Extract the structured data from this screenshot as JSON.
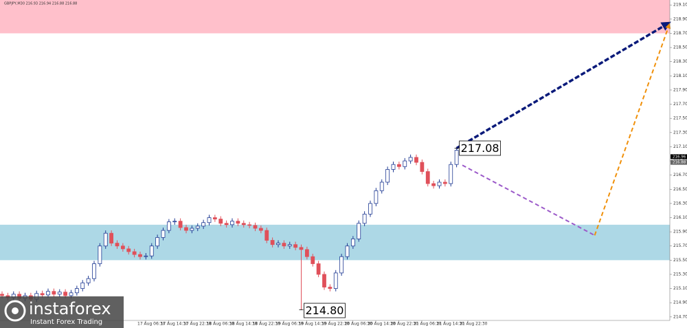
{
  "chart_data": {
    "type": "candlestick",
    "title": "GBPJPY,M30  216.93 216.94 216.88 216.88",
    "ylim": [
      214.65,
      219.17
    ],
    "yticks": [
      {
        "value": 214.7,
        "label": "214.70"
      },
      {
        "value": 214.9,
        "label": "214.90"
      },
      {
        "value": 215.1,
        "label": "215.10"
      },
      {
        "value": 215.3,
        "label": "215.30"
      },
      {
        "value": 215.5,
        "label": "215.50"
      },
      {
        "value": 215.7,
        "label": "215.70"
      },
      {
        "value": 215.9,
        "label": "215.90"
      },
      {
        "value": 216.1,
        "label": "216.10"
      },
      {
        "value": 216.3,
        "label": "216.30"
      },
      {
        "value": 216.5,
        "label": "216.50"
      },
      {
        "value": 216.7,
        "label": "216.70"
      },
      {
        "value": 216.9,
        "label": "216.90"
      },
      {
        "value": 217.1,
        "label": "217.10"
      },
      {
        "value": 217.3,
        "label": "217.30"
      },
      {
        "value": 217.5,
        "label": "217.50"
      },
      {
        "value": 217.7,
        "label": "217.70"
      },
      {
        "value": 217.9,
        "label": "217.90"
      },
      {
        "value": 218.1,
        "label": "218.10"
      },
      {
        "value": 218.3,
        "label": "218.30"
      },
      {
        "value": 218.5,
        "label": "218.50"
      },
      {
        "value": 218.7,
        "label": "218.70"
      },
      {
        "value": 218.9,
        "label": "218.90"
      },
      {
        "value": 219.1,
        "label": "219.10"
      }
    ],
    "xticks": [
      "17 Aug 06:30",
      "17 Aug 14:30",
      "17 Aug 22:30",
      "18 Aug 06:30",
      "18 Aug 14:30",
      "18 Aug 22:30",
      "19 Aug 06:30",
      "19 Aug 14:30",
      "19 Aug 22:30",
      "20 Aug 06:30",
      "20 Aug 14:30",
      "20 Aug 22:30",
      "21 Aug 06:30",
      "21 Aug 14:30",
      "21 Aug 22:30"
    ],
    "up_color": "#1f3a93",
    "down_color": "#e0505a",
    "open": [
      215.02,
      215.0,
      214.97,
      215.02,
      214.96,
      215.0,
      214.95,
      215.03,
      215.01,
      215.06,
      215.02,
      215.05,
      215.0,
      215.04,
      215.1,
      215.18,
      215.24,
      215.45,
      215.7,
      215.88,
      215.74,
      215.7,
      215.66,
      215.62,
      215.58,
      215.55,
      215.56,
      215.7,
      215.82,
      215.92,
      216.04,
      216.05,
      215.96,
      215.92,
      215.95,
      215.98,
      216.03,
      216.1,
      216.08,
      216.02,
      216.0,
      216.05,
      216.02,
      216.0,
      215.99,
      215.95,
      215.92,
      215.78,
      215.72,
      215.74,
      215.7,
      215.72,
      215.68,
      215.65,
      215.55,
      215.45,
      215.3,
      215.12,
      215.1,
      215.32,
      215.55,
      215.7,
      215.8,
      216.02,
      216.15,
      216.3,
      216.48,
      216.6,
      216.78,
      216.85,
      216.82,
      216.9,
      216.95,
      216.88,
      216.75,
      216.58,
      216.55,
      216.6,
      216.58,
      216.85
    ],
    "high": [
      215.06,
      215.04,
      215.06,
      215.06,
      215.04,
      215.04,
      215.07,
      215.07,
      215.1,
      215.1,
      215.09,
      215.09,
      215.08,
      215.14,
      215.22,
      215.28,
      215.49,
      215.74,
      215.92,
      215.92,
      215.78,
      215.74,
      215.7,
      215.66,
      215.62,
      215.6,
      215.74,
      215.86,
      215.96,
      216.08,
      216.09,
      216.09,
      216.0,
      215.99,
      216.02,
      216.07,
      216.14,
      216.14,
      216.12,
      216.06,
      216.09,
      216.09,
      216.06,
      216.04,
      216.03,
      215.99,
      215.96,
      215.82,
      215.78,
      215.78,
      215.76,
      215.76,
      215.72,
      215.69,
      215.59,
      215.49,
      215.34,
      215.16,
      215.36,
      215.59,
      215.74,
      215.84,
      216.06,
      216.19,
      216.34,
      216.52,
      216.64,
      216.82,
      216.89,
      216.89,
      216.94,
      216.99,
      216.99,
      216.92,
      216.79,
      216.62,
      216.64,
      216.64,
      216.89,
      217.08
    ],
    "low": [
      214.96,
      214.93,
      214.93,
      214.92,
      214.92,
      214.91,
      214.91,
      214.97,
      214.97,
      214.98,
      214.98,
      214.96,
      214.96,
      215.0,
      215.06,
      215.14,
      215.2,
      215.41,
      215.66,
      215.7,
      215.66,
      215.62,
      215.58,
      215.54,
      215.51,
      215.51,
      215.52,
      215.66,
      215.78,
      215.88,
      216.0,
      215.92,
      215.88,
      215.88,
      215.91,
      215.94,
      215.99,
      216.04,
      215.98,
      215.96,
      215.96,
      215.98,
      215.96,
      215.95,
      215.91,
      215.88,
      215.74,
      215.68,
      215.68,
      215.66,
      215.66,
      215.64,
      214.8,
      215.51,
      215.41,
      215.26,
      215.08,
      215.06,
      215.06,
      215.28,
      215.51,
      215.66,
      215.76,
      215.98,
      216.11,
      216.26,
      216.44,
      216.56,
      216.74,
      216.78,
      216.78,
      216.86,
      216.84,
      216.71,
      216.54,
      216.51,
      216.51,
      216.54,
      216.54,
      216.81
    ],
    "close": [
      215.0,
      214.97,
      215.02,
      214.96,
      215.0,
      214.95,
      215.03,
      215.01,
      215.06,
      215.02,
      215.05,
      215.0,
      215.04,
      215.1,
      215.18,
      215.24,
      215.45,
      215.7,
      215.88,
      215.74,
      215.7,
      215.66,
      215.62,
      215.58,
      215.55,
      215.56,
      215.7,
      215.82,
      215.92,
      216.04,
      216.05,
      215.96,
      215.92,
      215.95,
      215.98,
      216.03,
      216.1,
      216.08,
      216.02,
      216.0,
      216.05,
      216.02,
      216.0,
      215.99,
      215.95,
      215.92,
      215.78,
      215.72,
      215.74,
      215.7,
      215.72,
      215.68,
      215.65,
      215.55,
      215.45,
      215.3,
      215.12,
      215.1,
      215.32,
      215.55,
      215.7,
      215.8,
      216.02,
      216.15,
      216.3,
      216.48,
      216.6,
      216.78,
      216.85,
      216.82,
      216.9,
      216.95,
      216.88,
      216.75,
      216.58,
      216.55,
      216.6,
      216.58,
      216.85,
      217.05
    ],
    "zones": [
      {
        "from": 218.7,
        "to": 219.17,
        "color": "#ffc0cb"
      },
      {
        "from": 215.5,
        "to": 216.0,
        "color": "#add8e6"
      }
    ],
    "forecast": [
      {
        "from": [
          79,
          217.08
        ],
        "to": [
          116,
          218.85
        ],
        "color": "#0a1a7a"
      },
      {
        "from": [
          80,
          216.84
        ],
        "to": [
          103,
          215.85
        ],
        "color": "#9b59c9"
      },
      {
        "from": [
          103,
          215.85
        ],
        "to": [
          116,
          218.83
        ],
        "color": "#f0900a"
      }
    ],
    "annotations": [
      {
        "text": "217.08",
        "index": 79,
        "price": 217.08
      },
      {
        "text": "214.80",
        "index": 52,
        "price": 214.8
      }
    ],
    "price_tags": [
      {
        "label": "216.96",
        "value": 216.96
      },
      {
        "label": "216.88",
        "value": 216.88
      }
    ],
    "logo": {
      "name": "instaforex",
      "tagline": "Instant Forex Trading"
    }
  }
}
